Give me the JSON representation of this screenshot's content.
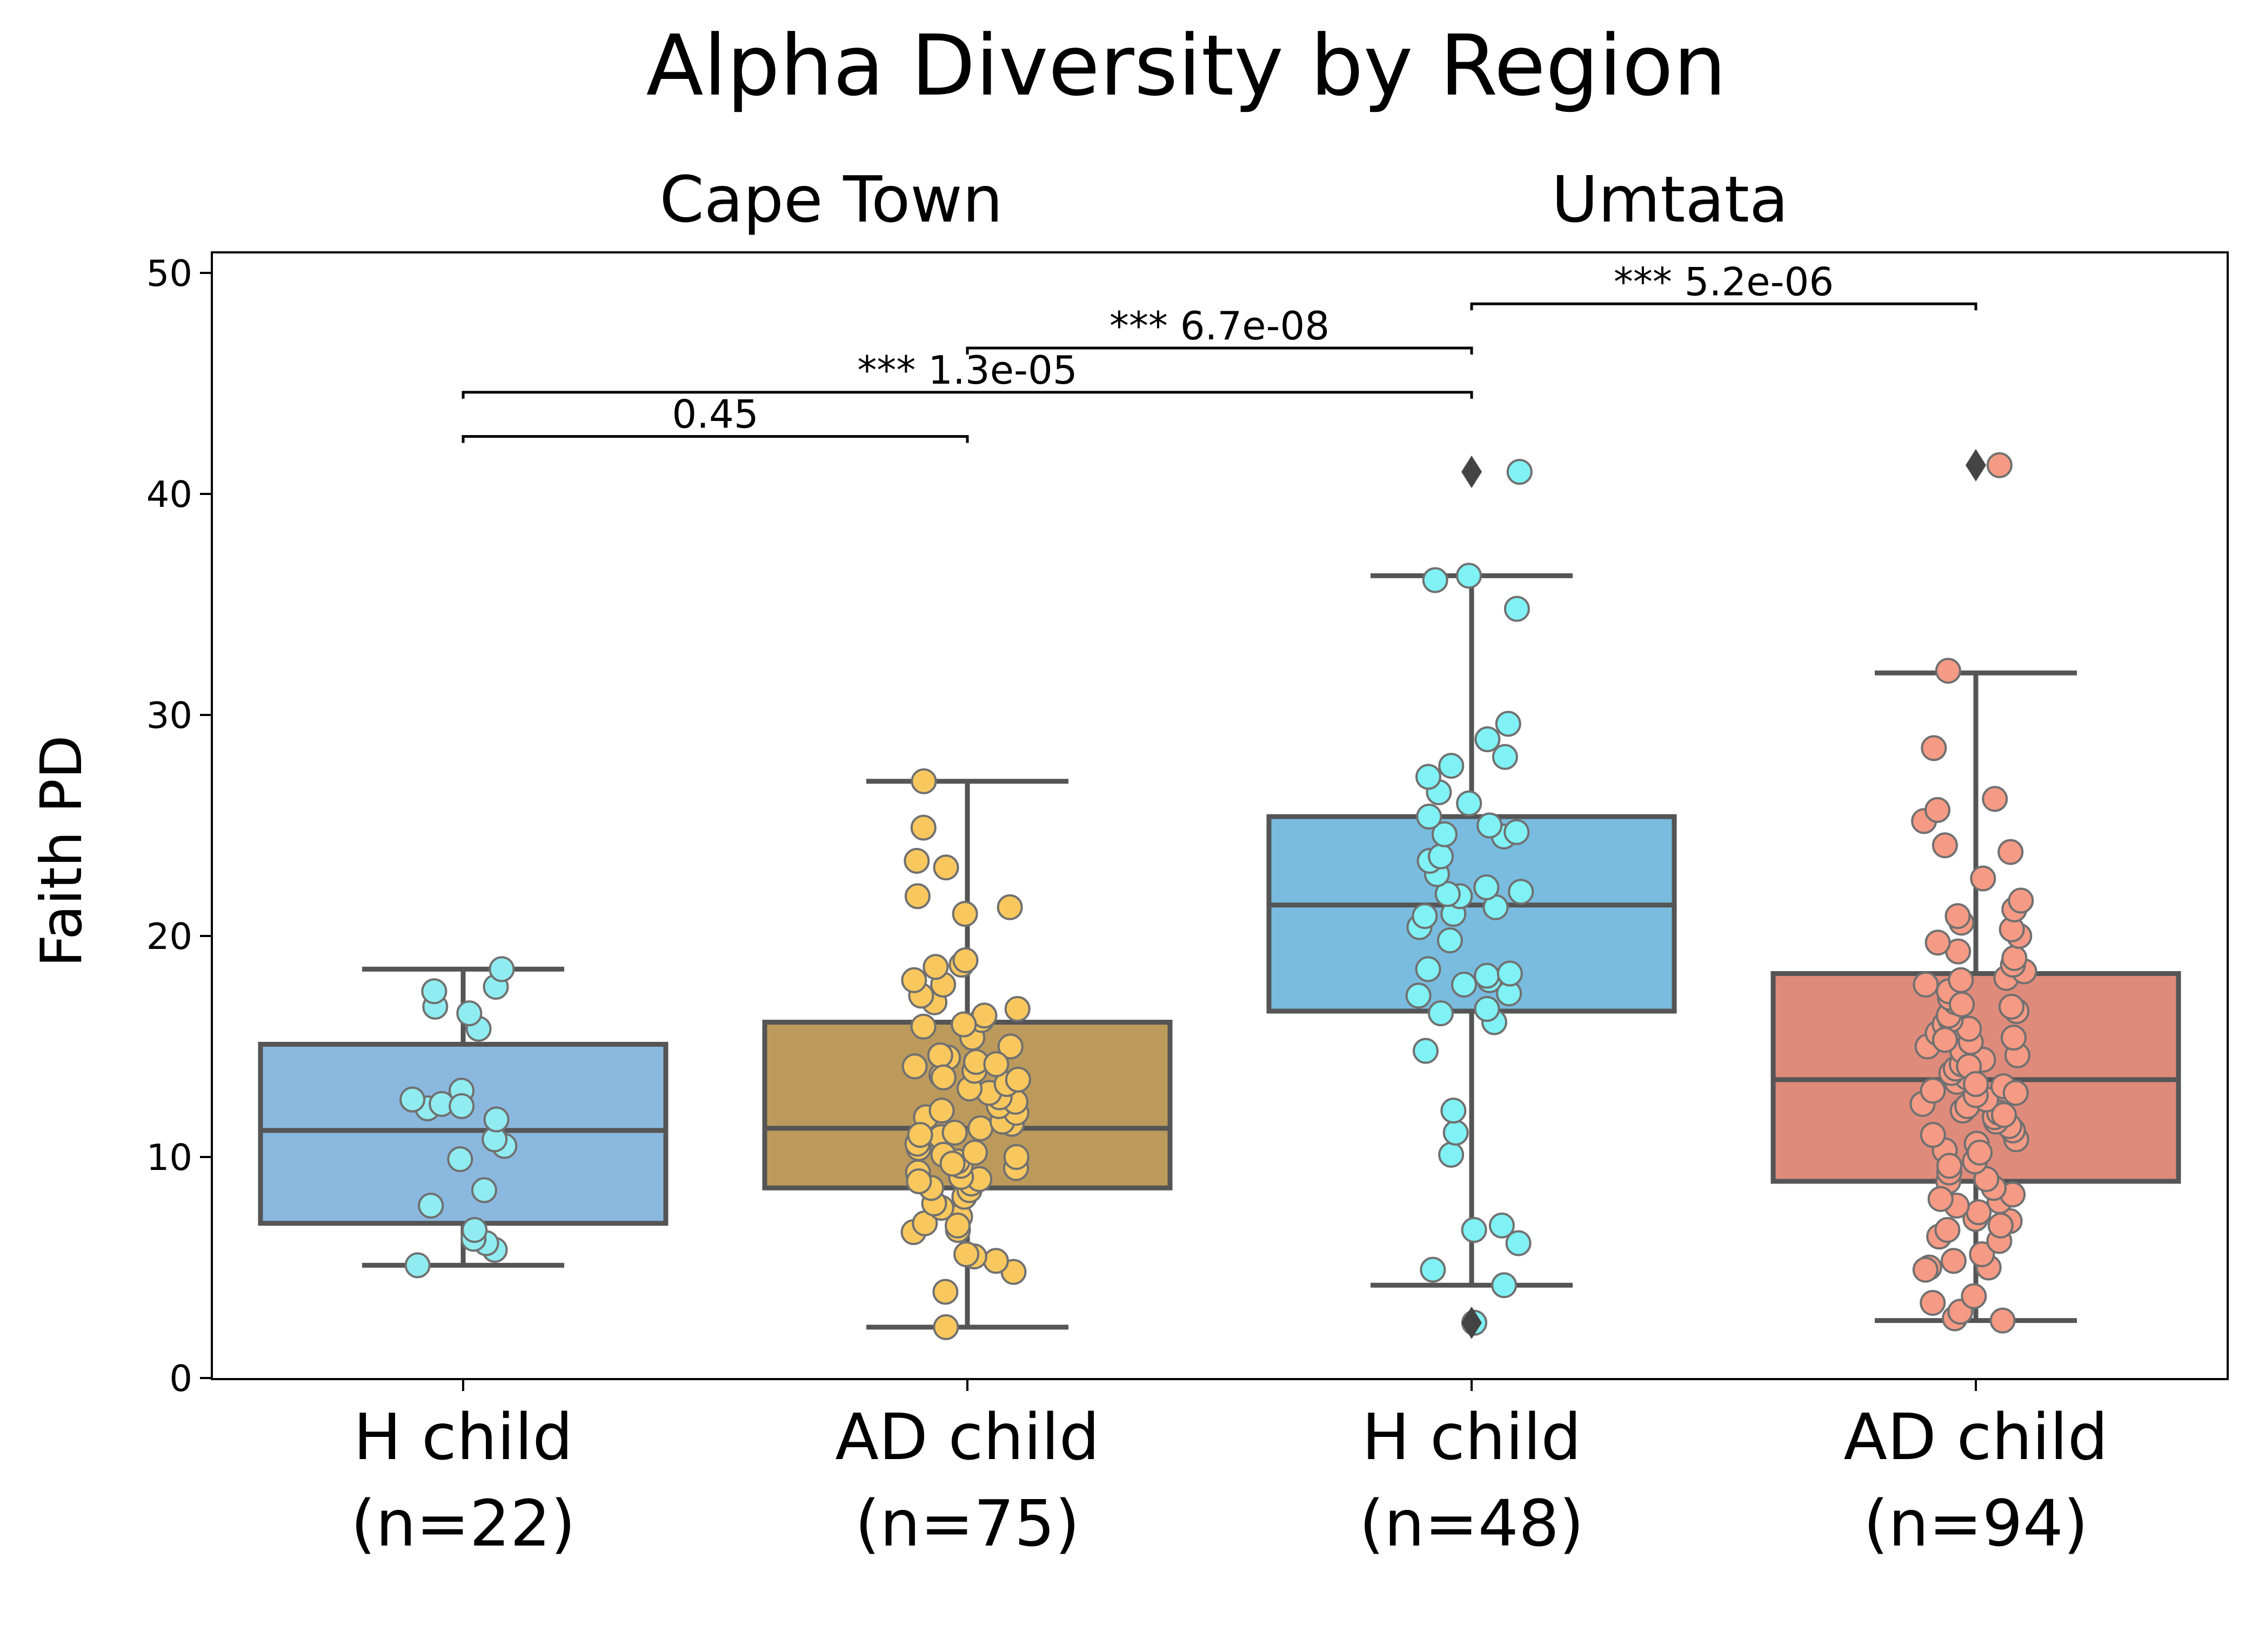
{
  "chart_data": {
    "type": "box",
    "title": "Alpha Diversity by Region",
    "group_labels": [
      "Cape Town",
      "Umtata"
    ],
    "ylabel": "Faith PD",
    "xlabel": "",
    "ylim": [
      0,
      50
    ],
    "yticks": [
      "0",
      "10",
      "20",
      "30",
      "40",
      "50"
    ],
    "grid": false,
    "categories": [
      {
        "line1": "H child",
        "line2": "(n=22)"
      },
      {
        "line1": "AD child",
        "line2": "(n=75)"
      },
      {
        "line1": "H child",
        "line2": "(n=48)"
      },
      {
        "line1": "AD child",
        "line2": "(n=94)"
      }
    ],
    "boxes": [
      {
        "q1": 7.0,
        "median": 11.2,
        "q3": 15.1,
        "whisker_low": 5.1,
        "whisker_high": 18.5,
        "outliers": [],
        "box_color": "#8bb8df",
        "point_color": "#90ecf0"
      },
      {
        "q1": 8.6,
        "median": 11.3,
        "q3": 16.1,
        "whisker_low": 2.3,
        "whisker_high": 27.0,
        "outliers": [],
        "box_color": "#bb9a5c",
        "point_color": "#f8c85f"
      },
      {
        "q1": 16.6,
        "median": 21.4,
        "q3": 25.4,
        "whisker_low": 4.2,
        "whisker_high": 36.3,
        "outliers": [
          41.0,
          2.5
        ],
        "box_color": "#79bcdf",
        "point_color": "#80f1f4"
      },
      {
        "q1": 8.9,
        "median": 13.5,
        "q3": 18.3,
        "whisker_low": 2.6,
        "whisker_high": 31.9,
        "outliers": [
          41.3
        ],
        "box_color": "#df8b7b",
        "point_color": "#f59a84"
      }
    ],
    "points": [
      [
        5.1,
        5.8,
        6.1,
        6.3,
        6.7,
        7.8,
        8.5,
        9.9,
        10.5,
        10.8,
        11.7,
        12.2,
        12.4,
        12.6,
        13.0,
        15.8,
        16.5,
        16.8,
        17.5,
        17.7,
        18.5,
        12.3
      ],
      [
        2.3,
        3.9,
        4.8,
        5.3,
        5.5,
        5.6,
        6.6,
        6.7,
        7.0,
        7.3,
        7.7,
        7.9,
        8.2,
        8.5,
        8.6,
        8.8,
        9.0,
        9.1,
        9.3,
        9.5,
        9.6,
        9.8,
        10.0,
        10.2,
        10.4,
        10.6,
        10.9,
        11.1,
        11.3,
        11.5,
        11.6,
        11.8,
        12.0,
        12.3,
        12.5,
        12.7,
        12.9,
        13.1,
        13.3,
        13.5,
        13.7,
        13.9,
        14.1,
        14.3,
        14.5,
        14.6,
        15.0,
        15.4,
        15.9,
        16.2,
        16.4,
        16.7,
        17.0,
        17.3,
        17.8,
        18.0,
        18.6,
        18.7,
        18.9,
        21.0,
        21.3,
        21.8,
        23.1,
        23.4,
        24.9,
        27.0,
        13.6,
        11.0,
        10.1,
        8.9,
        9.7,
        12.1,
        14.2,
        6.9,
        16.0
      ],
      [
        2.5,
        4.2,
        4.9,
        6.1,
        6.7,
        6.9,
        10.1,
        11.1,
        12.1,
        14.8,
        16.1,
        16.5,
        16.7,
        17.3,
        17.4,
        17.8,
        18.0,
        18.2,
        18.3,
        18.5,
        20.4,
        21.0,
        21.3,
        21.8,
        21.9,
        22.0,
        22.8,
        23.4,
        23.6,
        24.5,
        24.6,
        24.7,
        25.0,
        25.4,
        26.0,
        26.5,
        27.2,
        27.7,
        28.1,
        28.9,
        29.6,
        34.8,
        36.1,
        36.3,
        41.0,
        20.9,
        22.2,
        19.8
      ],
      [
        2.6,
        2.7,
        3.0,
        3.4,
        3.7,
        5.0,
        5.0,
        5.3,
        5.6,
        6.2,
        6.4,
        6.7,
        7.1,
        7.2,
        7.5,
        7.8,
        8.0,
        8.3,
        8.6,
        8.9,
        9.0,
        9.3,
        9.8,
        10.3,
        10.6,
        10.8,
        11.0,
        11.2,
        11.4,
        11.6,
        11.8,
        12.0,
        12.1,
        12.3,
        12.4,
        12.6,
        12.8,
        13.0,
        13.2,
        13.4,
        13.6,
        13.8,
        14.0,
        14.2,
        14.4,
        14.6,
        14.8,
        15.0,
        15.2,
        15.4,
        15.6,
        15.8,
        16.0,
        16.2,
        16.4,
        16.6,
        16.8,
        17.0,
        17.2,
        17.5,
        17.8,
        18.1,
        18.4,
        18.7,
        19.0,
        19.3,
        19.7,
        20.0,
        20.3,
        20.6,
        20.9,
        21.2,
        21.6,
        22.6,
        23.8,
        24.1,
        25.2,
        25.7,
        26.2,
        28.5,
        32.0,
        41.3,
        9.6,
        10.2,
        11.9,
        12.9,
        14.1,
        15.3,
        16.9,
        18.0,
        13.3,
        8.1,
        6.9,
        4.9
      ]
    ],
    "annotations": [
      {
        "from": 0,
        "to": 1,
        "y": 42.6,
        "stars": "",
        "p": "0.45",
        "label": "0.45"
      },
      {
        "from": 0,
        "to": 2,
        "y": 44.6,
        "stars": "***",
        "p": "1.3e-05",
        "label": "***  1.3e-05"
      },
      {
        "from": 1,
        "to": 2,
        "y": 46.6,
        "stars": "***",
        "p": "6.7e-08",
        "label": "***  6.7e-08"
      },
      {
        "from": 2,
        "to": 3,
        "y": 48.6,
        "stars": "***",
        "p": "5.2e-06",
        "label": "***  5.2e-06"
      }
    ],
    "colors": {
      "box_edge": "#555555",
      "point_edge": "#707070",
      "outlier": "#444444",
      "axis": "#000000"
    }
  }
}
